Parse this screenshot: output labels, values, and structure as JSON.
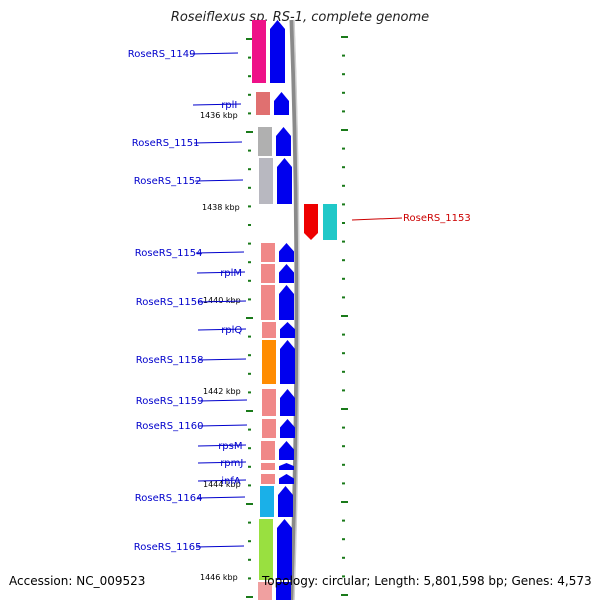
{
  "title": "Roseiflexus sp. RS-1, complete genome",
  "footer": {
    "accession": "Accession: NC_009523",
    "summary": "Topology: circular; Length: 5,801,598 bp; Genes: 4,573"
  },
  "colors": {
    "label_forward": "#0000cc",
    "label_reverse": "#cc0000",
    "cds_forward": "#0000ee",
    "cds_reverse": "#ee0000",
    "backbone": "#888888",
    "tick": "#1a7a1a"
  },
  "kbp_marks": [
    "1436 kbp",
    "1438 kbp",
    "1440 kbp",
    "1442 kbp",
    "1444 kbp",
    "1446 kbp"
  ],
  "genes_forward": [
    {
      "label": "RoseRS_1149",
      "color": "#ee1188"
    },
    {
      "label": "rplI",
      "color": "#e07070"
    },
    {
      "label": "RoseRS_1151",
      "color": "#b0b0b0"
    },
    {
      "label": "RoseRS_1152",
      "color": "#b8b8c0"
    },
    {
      "label": "RoseRS_1154",
      "color": "#f08888"
    },
    {
      "label": "rplM",
      "color": "#f08888"
    },
    {
      "label": "RoseRS_1156",
      "color": "#f08888"
    },
    {
      "label": "rplQ",
      "color": "#f08888"
    },
    {
      "label": "RoseRS_1158",
      "color": "#ff8c00"
    },
    {
      "label": "RoseRS_1159",
      "color": "#f08888"
    },
    {
      "label": "RoseRS_1160",
      "color": "#f08888"
    },
    {
      "label": "rpsM",
      "color": "#f08888"
    },
    {
      "label": "rpmJ",
      "color": "#f08888"
    },
    {
      "label": "infA",
      "color": "#f08888"
    },
    {
      "label": "RoseRS_1164",
      "color": "#1ab0e8"
    },
    {
      "label": "RoseRS_1165",
      "color": "#99e040"
    }
  ],
  "genes_reverse": [
    {
      "label": "RoseRS_1153",
      "color": "#20c8c8"
    }
  ]
}
